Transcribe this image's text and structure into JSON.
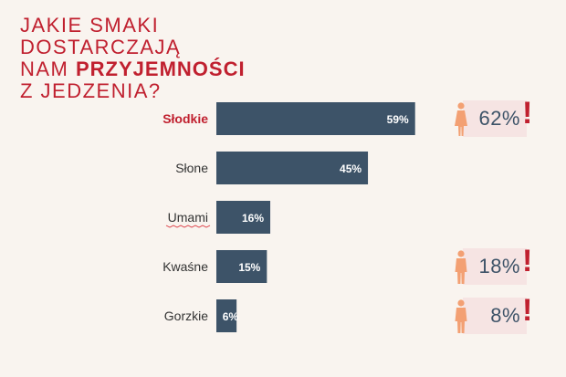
{
  "title": {
    "line1": "JAKIE SMAKI",
    "line2": "DOSTARCZAJĄ",
    "line3_prefix": "NAM ",
    "line3_emph": "PRZYJEMNOŚCI",
    "line4": "Z JEDZENIA?"
  },
  "colors": {
    "bar": "#3d5368",
    "title": "#c0202f",
    "highlight_label": "#c0202f",
    "person_icon": "#f3a073",
    "exclamation": "#c0202f",
    "callout_box": "#f6e4e3",
    "background": "#f9f4ef"
  },
  "chart_data": {
    "type": "bar",
    "orientation": "horizontal",
    "categories": [
      "Słodkie",
      "Słone",
      "Umami",
      "Kwaśne",
      "Gorzkie"
    ],
    "values": [
      59,
      45,
      16,
      15,
      6
    ],
    "value_labels": [
      "59%",
      "45%",
      "16%",
      "15%",
      "6%"
    ],
    "highlighted_category": "Słodkie",
    "xlim": [
      0,
      100
    ],
    "grid": false,
    "legend": "none"
  },
  "callouts": [
    {
      "category": "Słodkie",
      "icon": "woman-icon",
      "value": 62,
      "label": "62%",
      "mark": "!"
    },
    {
      "category": "Kwaśne",
      "icon": "man-icon",
      "value": 18,
      "label": "18%",
      "mark": "!"
    },
    {
      "category": "Gorzkie",
      "icon": "man-icon",
      "value": 8,
      "label": "8%",
      "mark": "!"
    }
  ]
}
